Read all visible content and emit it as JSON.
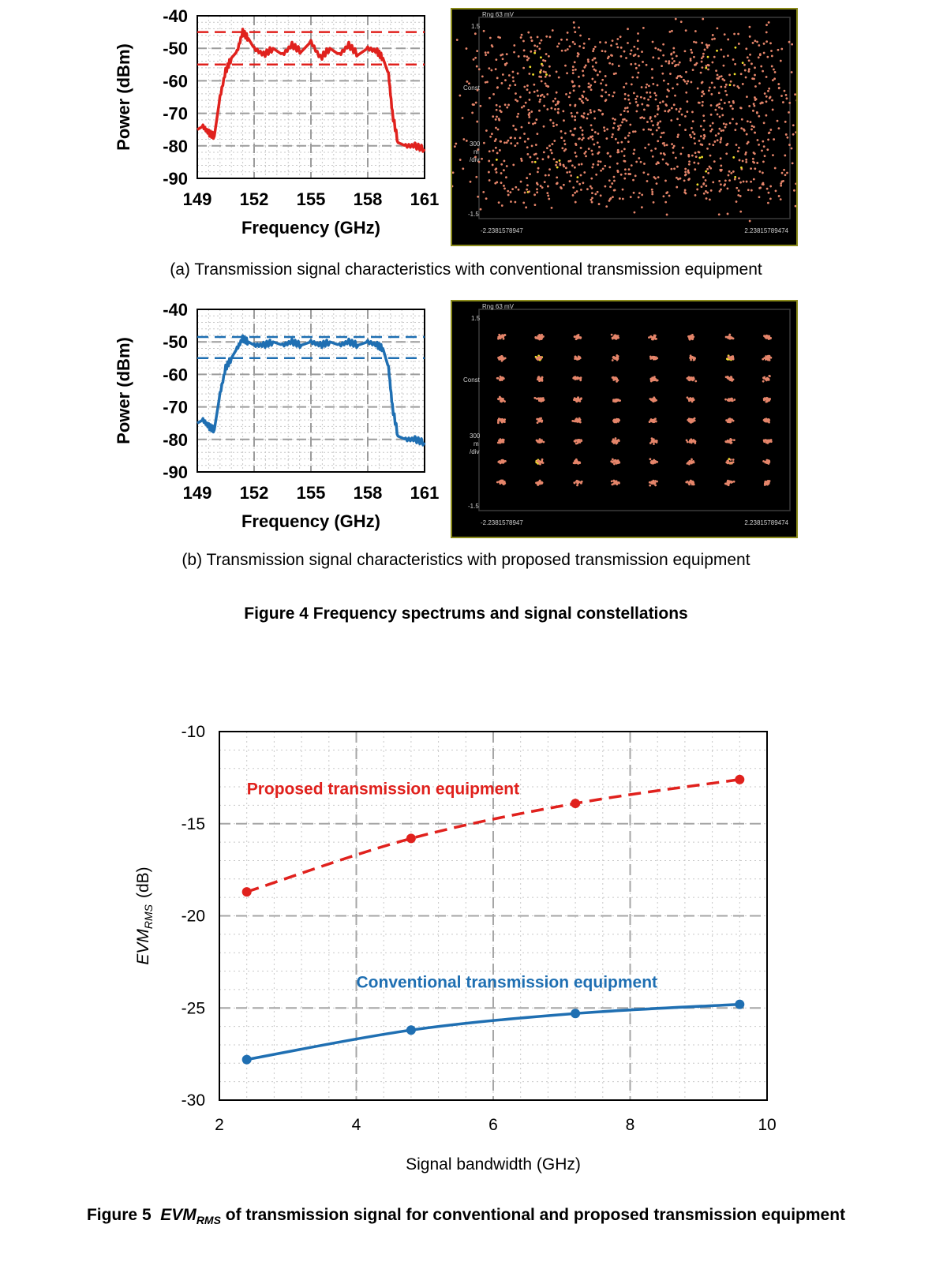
{
  "figure4": {
    "caption": "Figure 4  Frequency spectrums and signal constellations",
    "panel_a_caption": "(a) Transmission signal characteristics with conventional transmission equipment",
    "panel_b_caption": "(b) Transmission signal characteristics with proposed transmission equipment",
    "constellation": {
      "range_label": "Rng 63 mV",
      "y_top": "1.5",
      "y_bottom": "-1.5",
      "const_label": "Const",
      "div_label_1": "300",
      "div_label_2": "m",
      "div_label_3": "/div",
      "x_left": "-2.2381578947",
      "x_right": "2.23815789474"
    }
  },
  "figure5": {
    "caption_prefix": "Figure 5",
    "caption_evm": "EVM",
    "caption_sub": "RMS",
    "caption_suffix": "of transmission signal for conventional and proposed transmission equipment"
  },
  "colors": {
    "red": "#e0211d",
    "blue": "#1f6fb2",
    "grid": "#bdbdbd"
  },
  "chart_data": [
    {
      "id": "spectrum-a",
      "type": "line",
      "xlabel": "Frequency (GHz)",
      "ylabel": "Power (dBm)",
      "xlim": [
        149,
        161
      ],
      "ylim": [
        -90,
        -40
      ],
      "xticks": [
        149,
        152,
        155,
        158,
        161
      ],
      "yticks": [
        -40,
        -50,
        -60,
        -70,
        -80,
        -90
      ],
      "grid": true,
      "color": "#e0211d",
      "ref_lines": [
        -45,
        -55
      ],
      "x": [
        149,
        149.3,
        149.6,
        149.9,
        150.2,
        150.5,
        150.8,
        151.1,
        151.4,
        151.7,
        152.0,
        152.5,
        153.0,
        153.5,
        154.0,
        154.5,
        155.0,
        155.5,
        156.0,
        156.5,
        157.0,
        157.5,
        158.0,
        158.5,
        158.8,
        159.1,
        159.3,
        159.6,
        160.0,
        160.5,
        161
      ],
      "y": [
        -75,
        -74,
        -76,
        -77,
        -65,
        -57,
        -53,
        -51,
        -45,
        -47,
        -50,
        -52,
        -50,
        -52,
        -49,
        -51,
        -48,
        -53,
        -50,
        -52,
        -49,
        -52,
        -50,
        -51,
        -53,
        -58,
        -70,
        -79,
        -80,
        -80,
        -81
      ]
    },
    {
      "id": "constellation-a",
      "type": "scatter",
      "xlim": [
        -2.2381578947,
        2.23815789474
      ],
      "ylim": [
        -1.5,
        1.5
      ],
      "description_free": true,
      "grid_points": 8,
      "spread": 0.22
    },
    {
      "id": "spectrum-b",
      "type": "line",
      "xlabel": "Frequency (GHz)",
      "ylabel": "Power (dBm)",
      "xlim": [
        149,
        161
      ],
      "ylim": [
        -90,
        -40
      ],
      "xticks": [
        149,
        152,
        155,
        158,
        161
      ],
      "yticks": [
        -40,
        -50,
        -60,
        -70,
        -80,
        -90
      ],
      "grid": true,
      "color": "#1f6fb2",
      "ref_lines": [
        -48.5,
        -55
      ],
      "x": [
        149,
        149.3,
        149.6,
        149.9,
        150.2,
        150.5,
        150.8,
        151.1,
        151.4,
        151.7,
        152.0,
        152.5,
        153.0,
        153.5,
        154.0,
        154.5,
        155.0,
        155.5,
        156.0,
        156.5,
        157.0,
        157.5,
        158.0,
        158.5,
        158.8,
        159.1,
        159.3,
        159.6,
        160.0,
        160.5,
        161
      ],
      "y": [
        -75,
        -74,
        -76,
        -77,
        -66,
        -58,
        -55,
        -52,
        -49,
        -50,
        -51,
        -51,
        -50,
        -51,
        -50,
        -51,
        -50,
        -51,
        -50,
        -51,
        -50,
        -51,
        -50,
        -51,
        -52,
        -58,
        -70,
        -79,
        -80,
        -80,
        -81
      ]
    },
    {
      "id": "constellation-b",
      "type": "scatter",
      "xlim": [
        -2.2381578947,
        2.23815789474
      ],
      "ylim": [
        -1.5,
        1.5
      ],
      "grid_points": 8,
      "spread": 0.035
    },
    {
      "id": "evm-chart",
      "type": "line",
      "xlabel": "Signal bandwidth  (GHz)",
      "ylabel": "EVMRMS  (dB)",
      "ylabel_main": "EVM",
      "ylabel_sub": "RMS",
      "ylabel_unit": "(dB)",
      "xlim": [
        2,
        10
      ],
      "ylim": [
        -30,
        -10
      ],
      "xticks": [
        2,
        4,
        6,
        8,
        10
      ],
      "yticks": [
        -10,
        -15,
        -20,
        -25,
        -30
      ],
      "grid": true,
      "series": [
        {
          "name": "Proposed transmission equipment",
          "color": "#e0211d",
          "dashed": true,
          "x": [
            2.4,
            4.8,
            7.2,
            9.6
          ],
          "y": [
            -18.7,
            -15.8,
            -13.9,
            -12.6
          ]
        },
        {
          "name": "Conventional transmission equipment",
          "color": "#1f6fb2",
          "dashed": false,
          "x": [
            2.4,
            4.8,
            7.2,
            9.6
          ],
          "y": [
            -27.8,
            -26.2,
            -25.3,
            -24.8
          ]
        }
      ]
    }
  ]
}
